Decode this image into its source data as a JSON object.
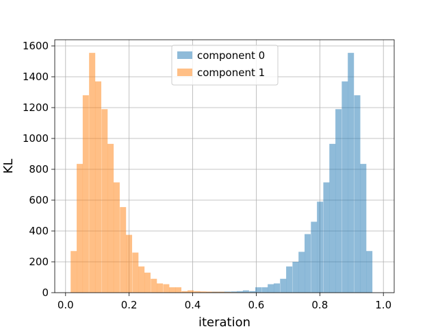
{
  "chart_data": {
    "type": "bar",
    "title": "",
    "xlabel": "iteration",
    "ylabel": "KL",
    "xlim": [
      -0.034,
      1.034
    ],
    "ylim": [
      0,
      1640
    ],
    "xticks": [
      0.0,
      0.2,
      0.4,
      0.6,
      0.8,
      1.0
    ],
    "xtick_labels": [
      "0.0",
      "0.2",
      "0.4",
      "0.6",
      "0.8",
      "1.0"
    ],
    "yticks": [
      0,
      200,
      400,
      600,
      800,
      1000,
      1200,
      1400,
      1600
    ],
    "ytick_labels": [
      "0",
      "200",
      "400",
      "600",
      "800",
      "1000",
      "1200",
      "1400",
      "1600"
    ],
    "grid": true,
    "legend_position": "upper-center",
    "bin_width": 0.0194,
    "series": [
      {
        "name": "component 0",
        "color": "#1f77b4",
        "alpha": 0.5,
        "bin_starts": [
          0.364,
          0.384,
          0.403,
          0.422,
          0.442,
          0.461,
          0.481,
          0.5,
          0.52,
          0.539,
          0.558,
          0.578,
          0.597,
          0.617,
          0.636,
          0.655,
          0.675,
          0.694,
          0.714,
          0.733,
          0.752,
          0.772,
          0.791,
          0.811,
          0.83,
          0.849,
          0.869,
          0.888,
          0.908,
          0.927,
          0.946,
          0.966
        ],
        "values": [
          1,
          2,
          2,
          3,
          4,
          6,
          6,
          7,
          8,
          10,
          15,
          10,
          35,
          35,
          55,
          60,
          90,
          170,
          200,
          265,
          380,
          460,
          590,
          715,
          965,
          1190,
          1370,
          1555,
          1280,
          835,
          270,
          0
        ]
      },
      {
        "name": "component 1",
        "color": "#ff7f0e",
        "alpha": 0.5,
        "bin_starts": [
          0.016,
          0.035,
          0.054,
          0.074,
          0.093,
          0.113,
          0.132,
          0.151,
          0.171,
          0.19,
          0.21,
          0.229,
          0.248,
          0.268,
          0.287,
          0.307,
          0.326,
          0.345,
          0.365,
          0.384,
          0.404,
          0.423,
          0.442,
          0.462,
          0.481,
          0.501,
          0.52,
          0.539,
          0.559,
          0.578,
          0.597,
          0.617
        ],
        "values": [
          270,
          835,
          1280,
          1555,
          1370,
          1190,
          965,
          715,
          555,
          375,
          260,
          170,
          130,
          90,
          60,
          55,
          35,
          35,
          10,
          15,
          10,
          8,
          7,
          6,
          6,
          4,
          3,
          2,
          2,
          1,
          1,
          0
        ]
      }
    ]
  }
}
